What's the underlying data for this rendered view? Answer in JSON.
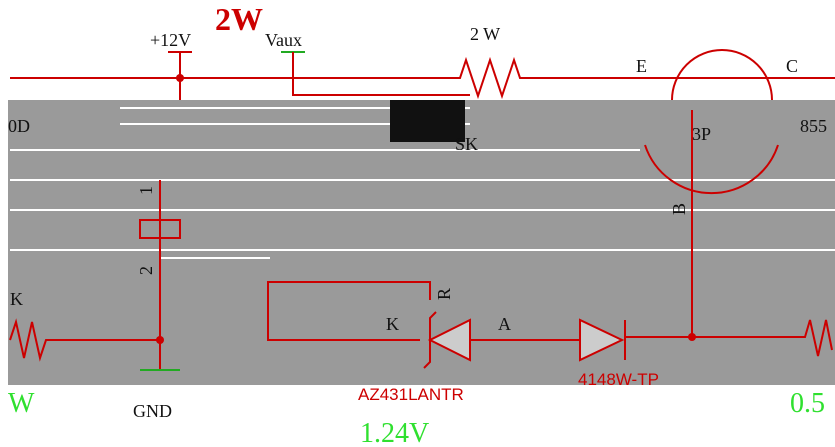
{
  "labels": {
    "plus12v": "+12V",
    "power_2w": "2W",
    "vaux": "Vaux",
    "resistor_2w": "2 W",
    "emitter": "E",
    "collector": "C",
    "part_bp": "3P",
    "base": "B",
    "part_855": "855",
    "part_0d": "0D",
    "part_sk": "SK",
    "k_left": "K",
    "pin1": "1",
    "pin2": "2",
    "cathode": "K",
    "ref": "R",
    "anode": "A",
    "zener_part": "AZ431LANTR",
    "diode_part": "4148W-TP",
    "gnd": "GND",
    "w_left": "W",
    "v05": "0.5",
    "v124": "1.24V"
  }
}
